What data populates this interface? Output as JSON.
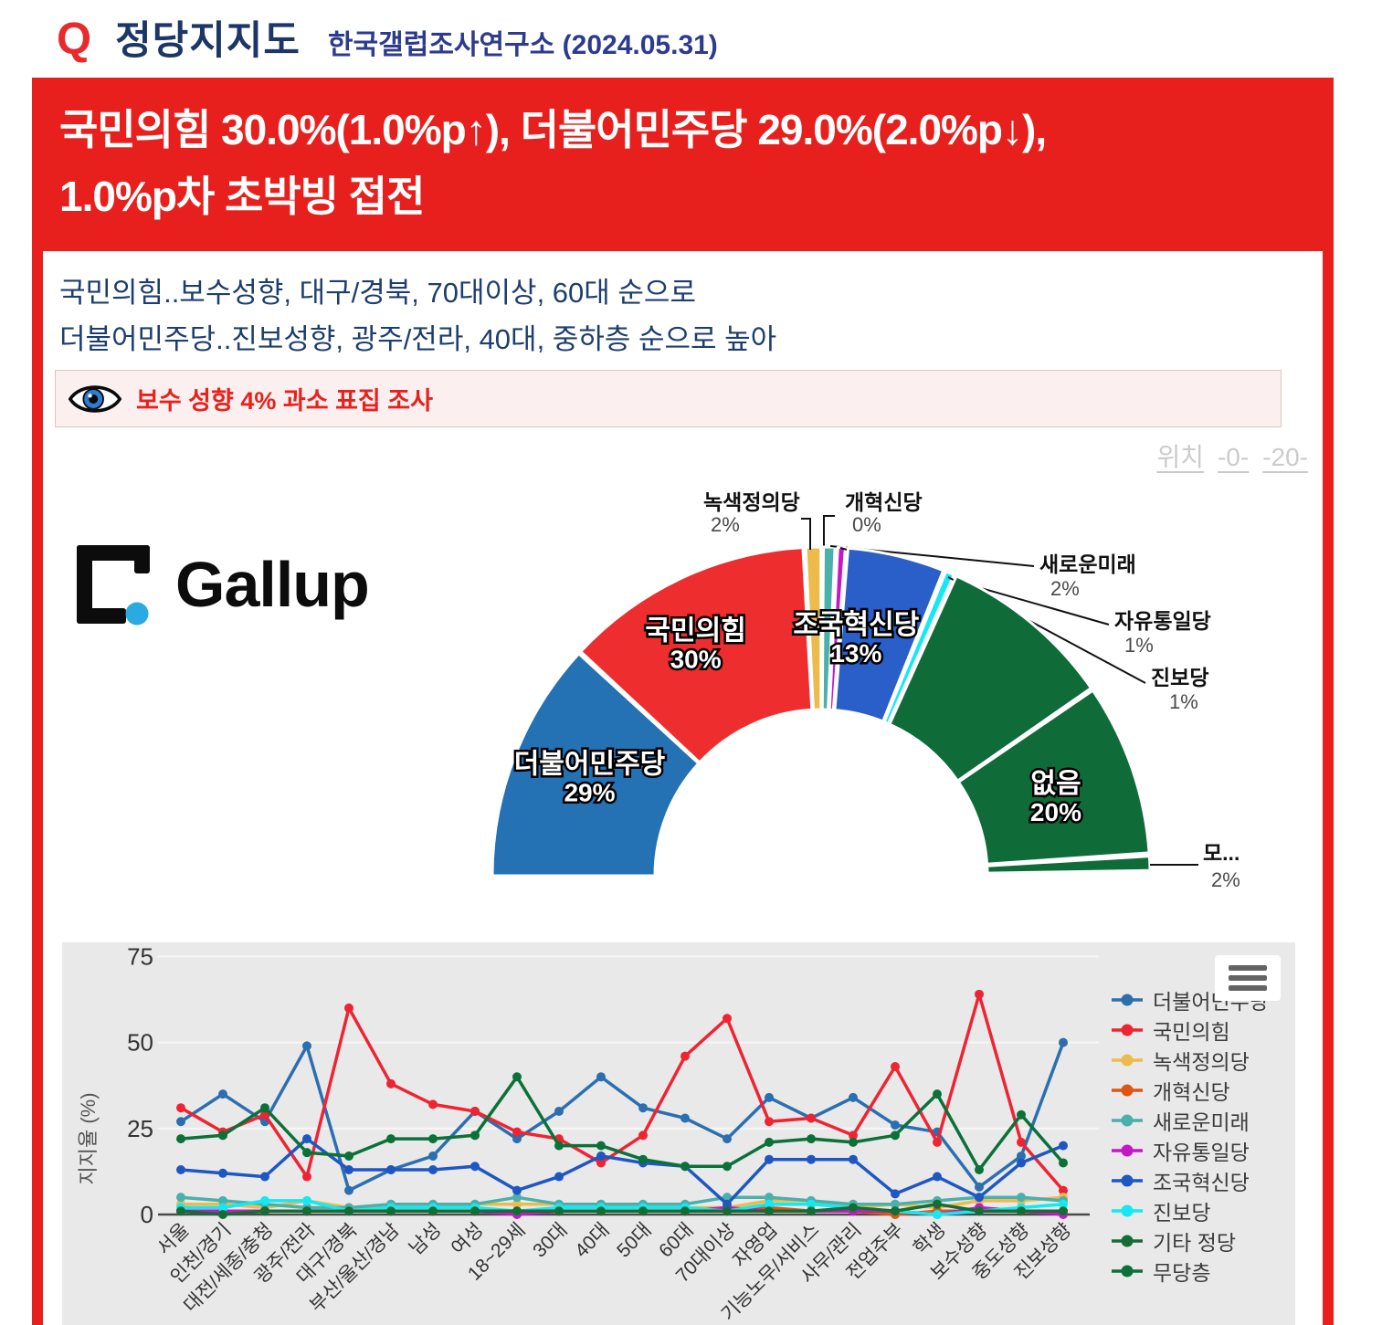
{
  "header": {
    "q_label": "Q",
    "title": "정당지지도",
    "source": "한국갤럽조사연구소 (2024.05.31)"
  },
  "banner": {
    "line1": "국민의힘 30.0%(1.0%p↑), 더불어민주당 29.0%(2.0%p↓),",
    "line2": "1.0%p차 초박빙 접전"
  },
  "subheadline": {
    "line1": "국민의힘..보수성향, 대구/경북, 70대이상, 60대 순으로",
    "line2": "더불어민주당..진보성향, 광주/전라, 40대, 중하층 순으로 높아"
  },
  "notice": {
    "icon": "eye-icon",
    "text": "보수 성향 4% 과소 표집 조사"
  },
  "position_links": {
    "label": "위치",
    "links": [
      "-0-",
      "-20-"
    ]
  },
  "logo": {
    "text": "Gallup"
  },
  "colors": {
    "brand_red": "#e7201d",
    "headline_navy": "#1d3e6e",
    "title_navy": "#1c3766",
    "source_blue": "#2d3b8e",
    "link_gray": "#cbcbcb",
    "panel_gray": "#e9e9e9"
  },
  "chart_data": [
    {
      "type": "pie",
      "subtype": "half-donut",
      "segments": [
        {
          "label": "더불어민주당",
          "value": "29%",
          "color": "#2471b4",
          "deg": [
            180.0,
            137.5
          ],
          "placement": "inner"
        },
        {
          "label": "국민의힘",
          "value": "30%",
          "color": "#ee2d2e",
          "deg": [
            137.0,
            93.2
          ],
          "placement": "inner"
        },
        {
          "label": "녹색정의당",
          "value": "2%",
          "color": "#edbb4c",
          "deg": [
            92.7,
            90.05
          ],
          "placement": "callout"
        },
        {
          "label": "개혁신당",
          "value": "0%",
          "color": "#dd5614",
          "deg": [
            89.95,
            89.9
          ],
          "placement": "callout"
        },
        {
          "label": "새로운미래",
          "value": "2%",
          "color": "#4ab0ab",
          "deg": [
            89.6,
            87.6
          ],
          "placement": "callout"
        },
        {
          "label": "자유통일당",
          "value": "1%",
          "color": "#c617c6",
          "deg": [
            87.1,
            85.8
          ],
          "placement": "callout"
        },
        {
          "label": "조국혁신당",
          "value": "13%",
          "color": "#2a5ec9",
          "deg": [
            85.3,
            68.2
          ],
          "placement": "inner"
        },
        {
          "label": "진보당",
          "value": "1%",
          "color": "#12e9f5",
          "deg": [
            67.7,
            66.2
          ],
          "placement": "callout"
        },
        {
          "label": "",
          "value": "",
          "color": "#0f6c39",
          "deg": [
            65.7,
            34.8
          ],
          "placement": "none"
        },
        {
          "label": "없음",
          "value": "20%",
          "color": "#0f6c39",
          "deg": [
            34.3,
            4.0
          ],
          "placement": "inner"
        },
        {
          "label": "모...",
          "value": "2%",
          "color": "#0f6c39",
          "deg": [
            3.4,
            0.9
          ],
          "placement": "callout"
        }
      ]
    },
    {
      "type": "line",
      "ylabel": "지지율 (%)",
      "yticks": [
        0,
        25,
        50,
        75
      ],
      "ylim": [
        0,
        80
      ],
      "grid": true,
      "legend_position": "right",
      "categories": [
        "서울",
        "인천/경기",
        "대전/세종/충청",
        "광주/전라",
        "대구/경북",
        "부산/울산/경남",
        "남성",
        "여성",
        "18~29세",
        "30대",
        "40대",
        "50대",
        "60대",
        "70대이상",
        "자영업",
        "기능노무/서비스",
        "사무/관리",
        "전업주부",
        "학생",
        "보수성향",
        "중도성향",
        "진보성향"
      ],
      "series": [
        {
          "name": "더불어민주당",
          "color": "#2b6fb0",
          "values": [
            27,
            35,
            27,
            49,
            7,
            13,
            17,
            30,
            22,
            30,
            40,
            31,
            28,
            22,
            34,
            28,
            34,
            26,
            24,
            8,
            17,
            50
          ]
        },
        {
          "name": "국민의힘",
          "color": "#ee2433",
          "values": [
            31,
            24,
            29,
            11,
            60,
            38,
            32,
            30,
            24,
            22,
            15,
            23,
            46,
            57,
            27,
            28,
            23,
            43,
            21,
            64,
            21,
            7
          ]
        },
        {
          "name": "녹색정의당",
          "color": "#edbb4c",
          "values": [
            3,
            3,
            2,
            4,
            2,
            2,
            2,
            3,
            3,
            3,
            3,
            2,
            2,
            2,
            4,
            4,
            2,
            3,
            2,
            4,
            4,
            5
          ]
        },
        {
          "name": "개혁신당",
          "color": "#dd5614",
          "values": [
            1,
            1,
            1,
            1,
            1,
            1,
            1,
            1,
            1,
            1,
            1,
            1,
            1,
            1,
            2,
            1,
            1,
            0,
            1,
            1,
            1,
            1
          ]
        },
        {
          "name": "새로운미래",
          "color": "#4ab0ab",
          "values": [
            5,
            4,
            3,
            2,
            2,
            3,
            3,
            3,
            5,
            3,
            3,
            3,
            3,
            5,
            5,
            4,
            3,
            3,
            4,
            5,
            5,
            4
          ]
        },
        {
          "name": "자유통일당",
          "color": "#c617c6",
          "values": [
            1,
            1,
            1,
            1,
            1,
            1,
            1,
            1,
            0,
            1,
            1,
            1,
            1,
            2,
            1,
            1,
            1,
            1,
            0,
            2,
            1,
            0
          ]
        },
        {
          "name": "조국혁신당",
          "color": "#1e57c2",
          "values": [
            13,
            12,
            11,
            22,
            13,
            13,
            13,
            14,
            7,
            11,
            17,
            15,
            14,
            3,
            16,
            16,
            16,
            6,
            11,
            5,
            15,
            20
          ]
        },
        {
          "name": "진보당",
          "color": "#12e9f5",
          "values": [
            2,
            2,
            4,
            4,
            1,
            2,
            2,
            2,
            1,
            2,
            2,
            2,
            2,
            1,
            3,
            3,
            2,
            1,
            0,
            1,
            2,
            3
          ]
        },
        {
          "name": "기타 정당",
          "color": "#156d33",
          "values": [
            1,
            0,
            1,
            1,
            1,
            1,
            1,
            1,
            1,
            1,
            1,
            1,
            1,
            1,
            1,
            1,
            2,
            1,
            3,
            1,
            1,
            1
          ]
        },
        {
          "name": "무당층",
          "color": "#0b7138",
          "values": [
            22,
            23,
            31,
            18,
            17,
            22,
            22,
            23,
            40,
            20,
            20,
            16,
            14,
            14,
            21,
            22,
            21,
            23,
            35,
            13,
            29,
            15
          ]
        }
      ]
    }
  ]
}
